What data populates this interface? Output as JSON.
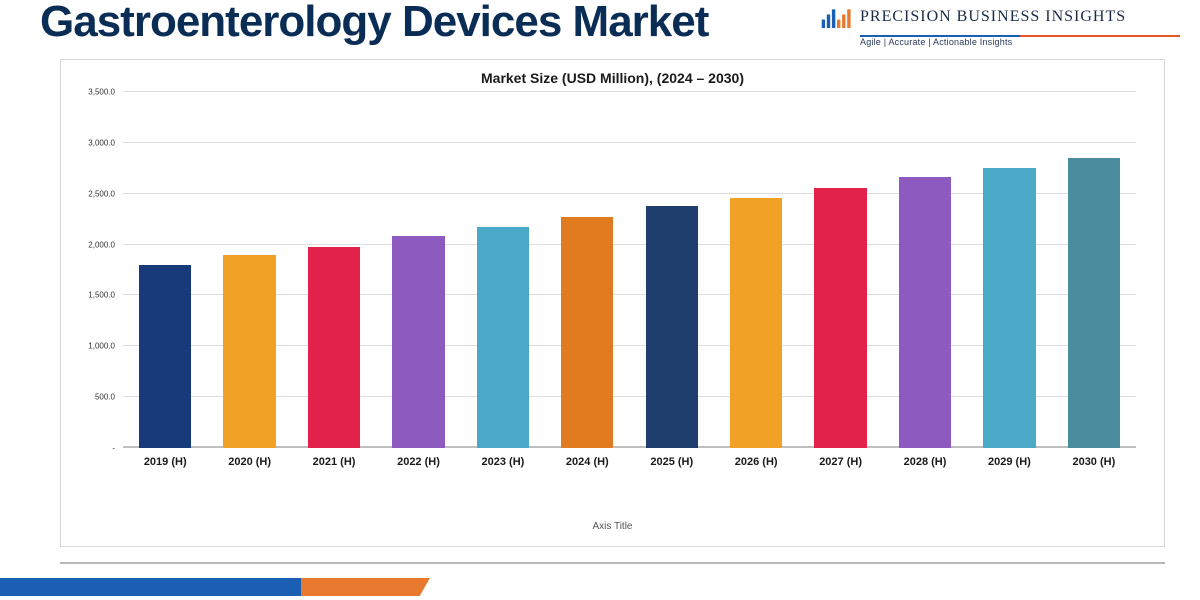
{
  "header": {
    "title": "Gastroenterology Devices Market",
    "title_color": "#0a2d56",
    "title_fontsize": 44,
    "brand_name": "PRECISION BUSINESS INSIGHTS",
    "brand_name_fontsize": 16,
    "brand_tagline": "Agile | Accurate | Actionable Insights",
    "brand_tagline_fontsize": 9,
    "logo_colors": {
      "blue": "#1a5fb4",
      "orange": "#e77a2e"
    }
  },
  "chart": {
    "type": "bar",
    "title": "Market Size (USD Million), (2024 – 2030)",
    "title_fontsize": 14,
    "axis_title": "Axis Title",
    "axis_title_fontsize": 10,
    "categories": [
      "2019 (H)",
      "2020 (H)",
      "2021 (H)",
      "2022 (H)",
      "2023 (H)",
      "2024 (H)",
      "2025 (H)",
      "2026 (H)",
      "2027 (H)",
      "2028 (H)",
      "2029 (H)",
      "2030 (H)"
    ],
    "values": [
      1800,
      1900,
      1980,
      2080,
      2170,
      2270,
      2380,
      2460,
      2560,
      2660,
      2750,
      2850
    ],
    "bar_colors": [
      "#163a7a",
      "#f2a127",
      "#e2224a",
      "#8d5bc0",
      "#4aa9c7",
      "#e07b1f",
      "#1e3e6e",
      "#f2a127",
      "#e2224a",
      "#8d5bc0",
      "#4aa9c7",
      "#4a8c9e"
    ],
    "ylim": [
      0,
      3500
    ],
    "yticks": [
      0,
      500,
      1000,
      1500,
      2000,
      2500,
      3000,
      3500
    ],
    "ytick_labels": [
      "-",
      "500.0",
      "1,000.0",
      "1,500.0",
      "2,000.0",
      "2,500.0",
      "3,000.0",
      "3,500.0"
    ],
    "ytick_fontsize": 8,
    "xlabel_fontsize": 11,
    "grid_color": "#dedede",
    "baseline_color": "#bfbfbf",
    "card_border_color": "#d8d8d8",
    "background_color": "#ffffff",
    "bar_width": 0.62
  },
  "ribbon": {
    "blue": "#1a5fb4",
    "orange": "#e77a2e"
  }
}
